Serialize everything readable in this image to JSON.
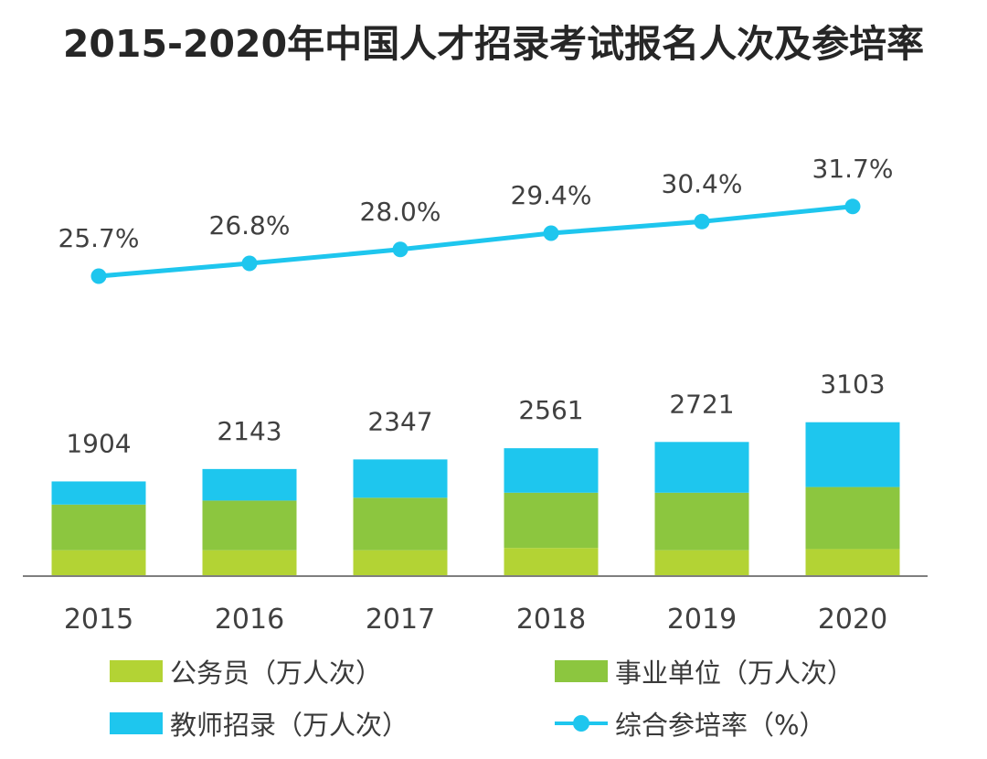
{
  "chart_data": {
    "type": "bar",
    "title": "2015-2020年中国人才招录考试报名人次及参培率",
    "categories": [
      "2015",
      "2016",
      "2017",
      "2018",
      "2019",
      "2020"
    ],
    "totals": [
      "1904",
      "2143",
      "2347",
      "2561",
      "2721",
      "3103"
    ],
    "rate_labels": [
      "25.7%",
      "26.8%",
      "28.0%",
      "29.4%",
      "30.4%",
      "31.7%"
    ],
    "series": [
      {
        "name": "公务员（万人次）",
        "type": "bar",
        "stacked": true,
        "color": "#b3d334",
        "values": [
          319,
          319,
          319,
          347,
          319,
          333
        ]
      },
      {
        "name": "事业单位（万人次）",
        "type": "bar",
        "stacked": true,
        "color": "#8cc63f",
        "values": [
          562,
          611,
          646,
          680,
          708,
          764
        ]
      },
      {
        "name": "教师招录（万人次）",
        "type": "bar",
        "stacked": true,
        "color": "#1ec6ee",
        "values": [
          285,
          389,
          472,
          548,
          625,
          798
        ]
      },
      {
        "name": "综合参培率（%）",
        "type": "line",
        "color": "#1ec6ee",
        "values": [
          25.7,
          26.8,
          28.0,
          29.4,
          30.4,
          31.7
        ]
      }
    ],
    "legend_position": "bottom",
    "grid": false
  }
}
